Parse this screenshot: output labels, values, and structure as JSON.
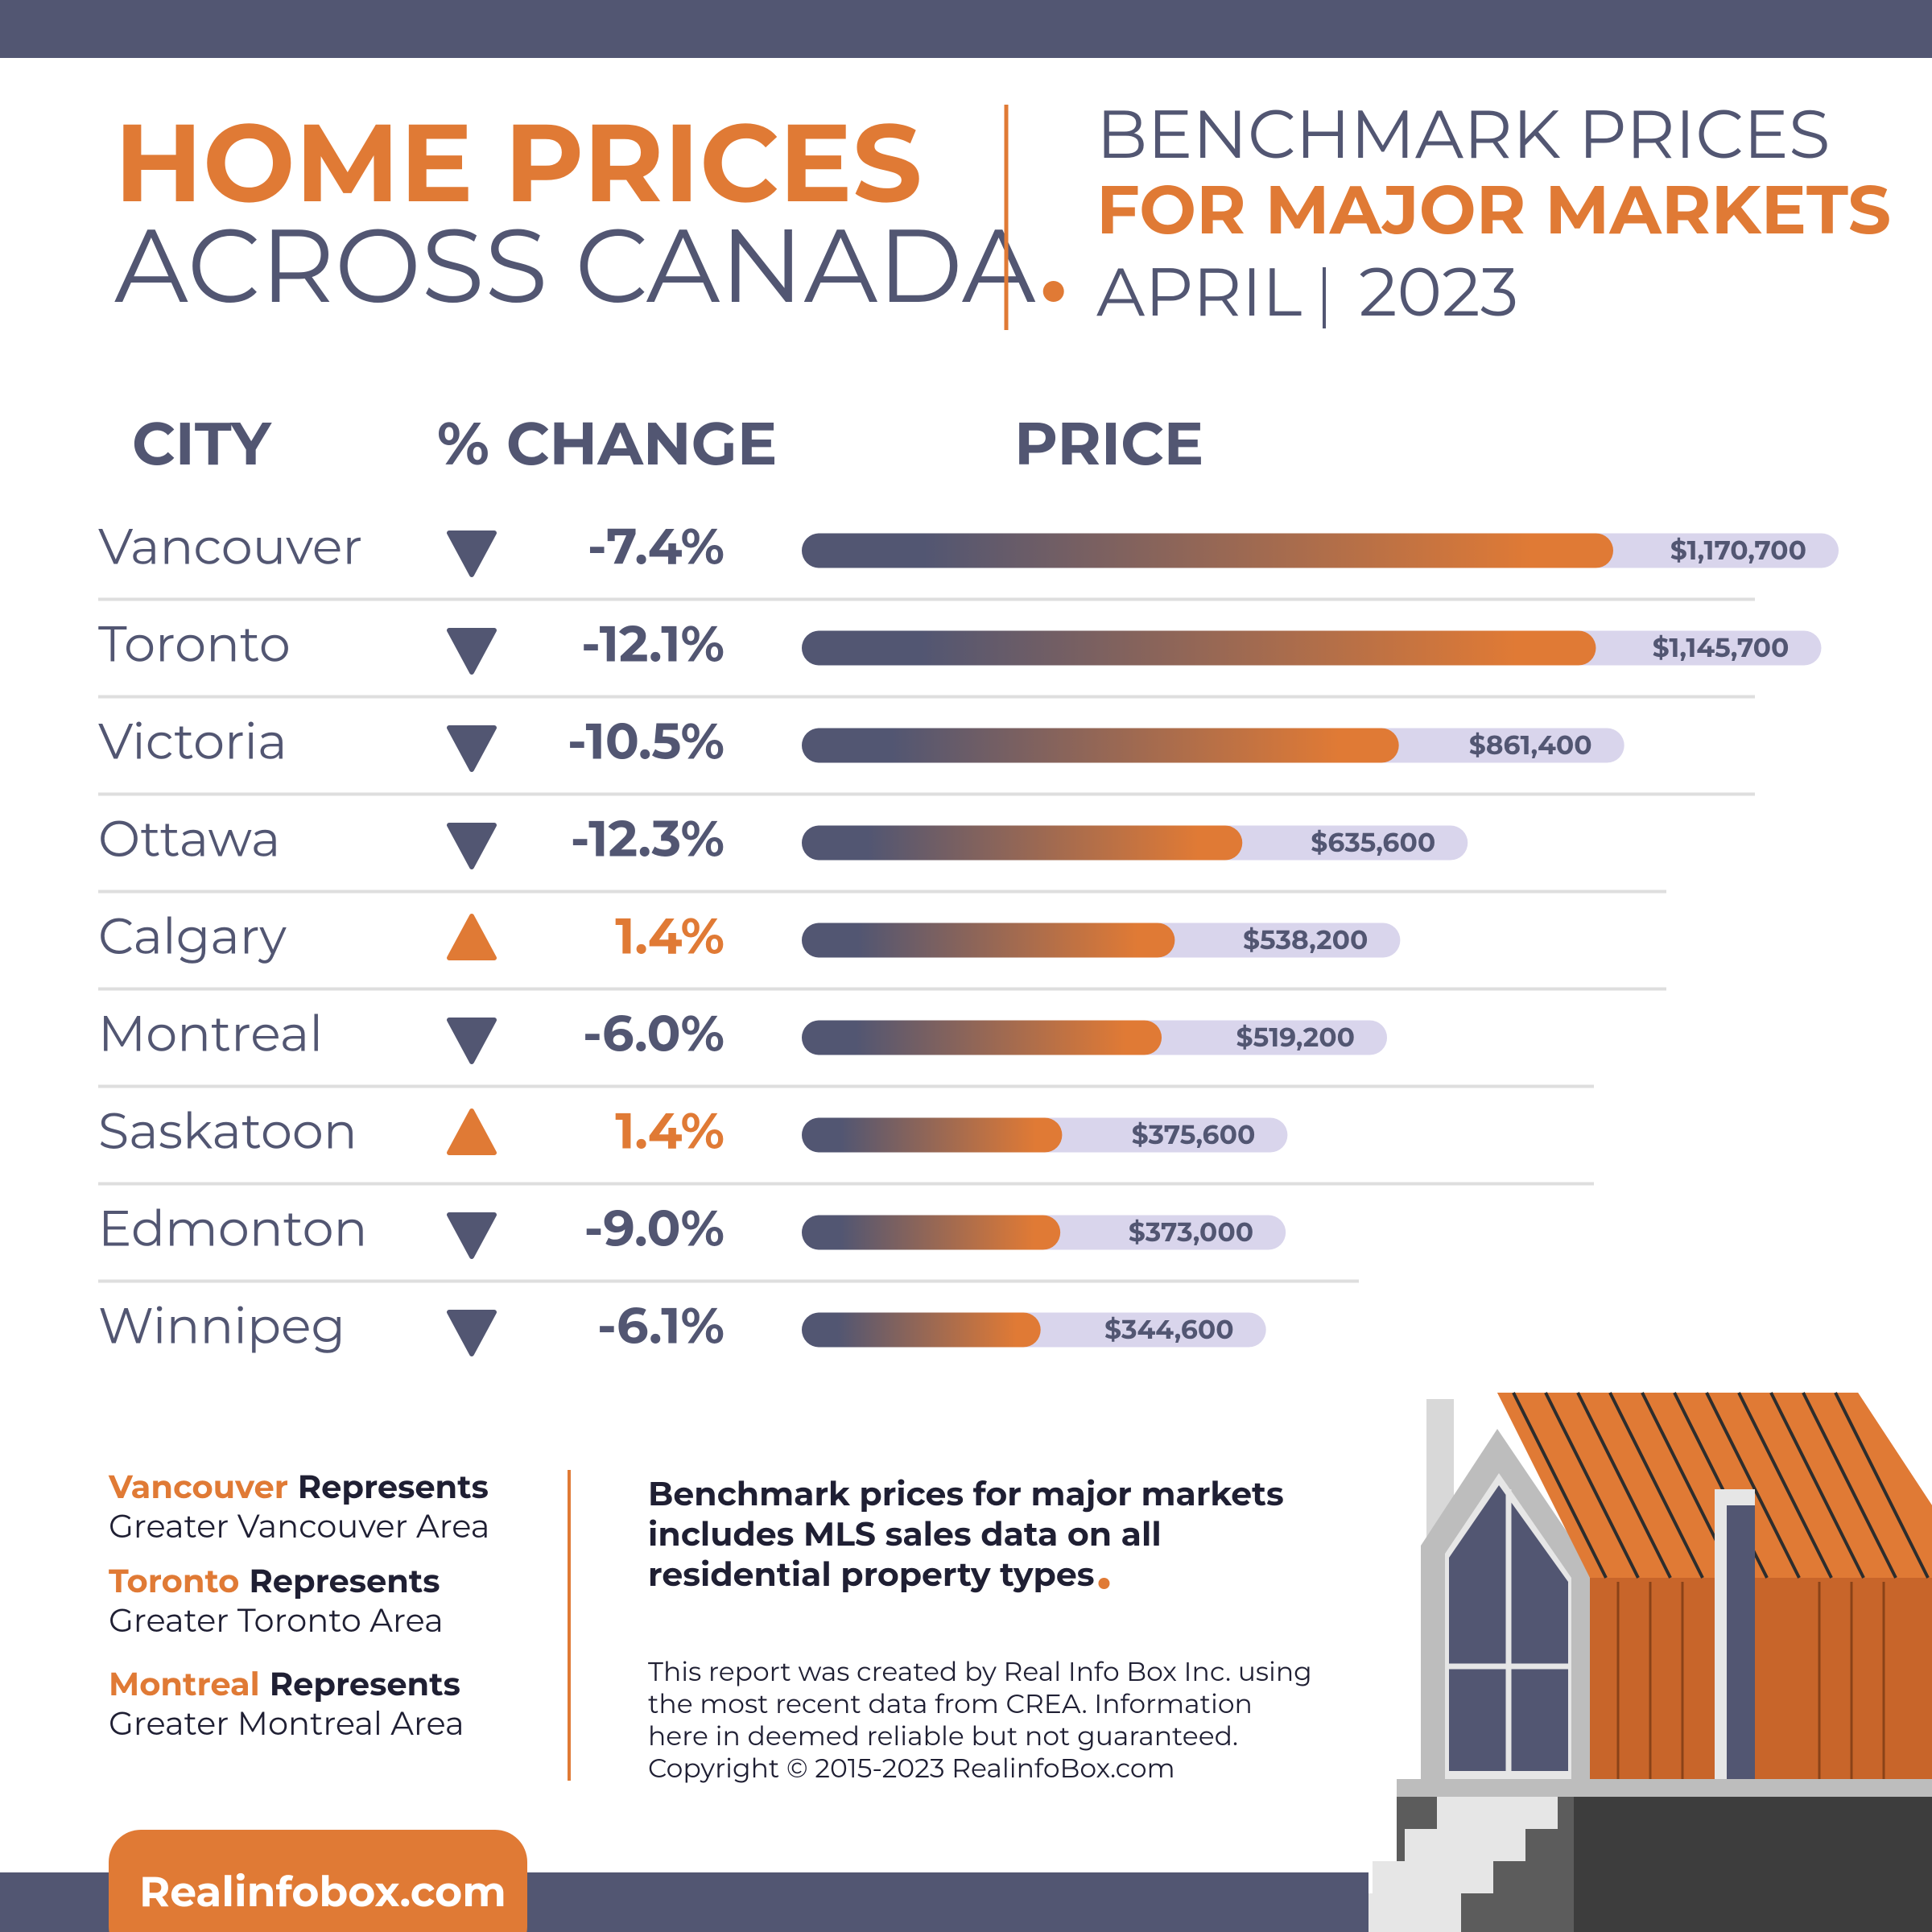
{
  "header": {
    "title_line1": "HOME PRICES",
    "title_line2": "ACROSS CANADA",
    "subtitle_line1": "BENCHMARK PRICES",
    "subtitle_line2": "FOR MAJOR MARKETS",
    "month": "APRIL",
    "year": "2023"
  },
  "chart_data": {
    "type": "bar",
    "column_headers": [
      "CITY",
      "% CHANGE",
      "PRICE"
    ],
    "categories": [
      "Vancouver",
      "Toronto",
      "Victoria",
      "Ottawa",
      "Calgary",
      "Montreal",
      "Saskatoon",
      "Edmonton",
      "Winnipeg"
    ],
    "values": [
      1170700,
      1145700,
      861400,
      635600,
      538200,
      519200,
      375600,
      373000,
      344600
    ],
    "value_labels": [
      "$1,170,700",
      "$1,145,700",
      "$861,400",
      "$635,600",
      "$538,200",
      "$519,200",
      "$375,600",
      "$373,000",
      "$344,600"
    ],
    "changes": [
      -7.4,
      -12.1,
      -10.5,
      -12.3,
      1.4,
      -6.0,
      1.4,
      -9.0,
      -6.1
    ],
    "change_labels": [
      "-7.4%",
      "-12.1%",
      "-10.5%",
      "-12.3%",
      "1.4%",
      "-6.0%",
      "1.4%",
      "-9.0%",
      "-6.1%"
    ],
    "colors": {
      "down": "#525672",
      "up": "#e07a35",
      "track": "#d9d5ec"
    }
  },
  "notes": [
    {
      "city": "Vancouver",
      "word": "Represents",
      "area": "Greater Vancouver Area"
    },
    {
      "city": "Toronto",
      "word": "Represents",
      "area": "Greater Toronto Area"
    },
    {
      "city": "Montreal",
      "word": "Represents",
      "area": "Greater Montreal Area"
    }
  ],
  "summary": [
    "Benchmark prices for major markets",
    "includes MLS sales data on all",
    "residential property types"
  ],
  "disclaimer": [
    "This report was created by Real Info Box Inc. using",
    "the most recent data from CREA. Information",
    "here in deemed reliable but not guaranteed.",
    "Copyright © 2015-2023 RealinfoBox.com"
  ],
  "footer": {
    "site": "Realinfobox.com"
  }
}
